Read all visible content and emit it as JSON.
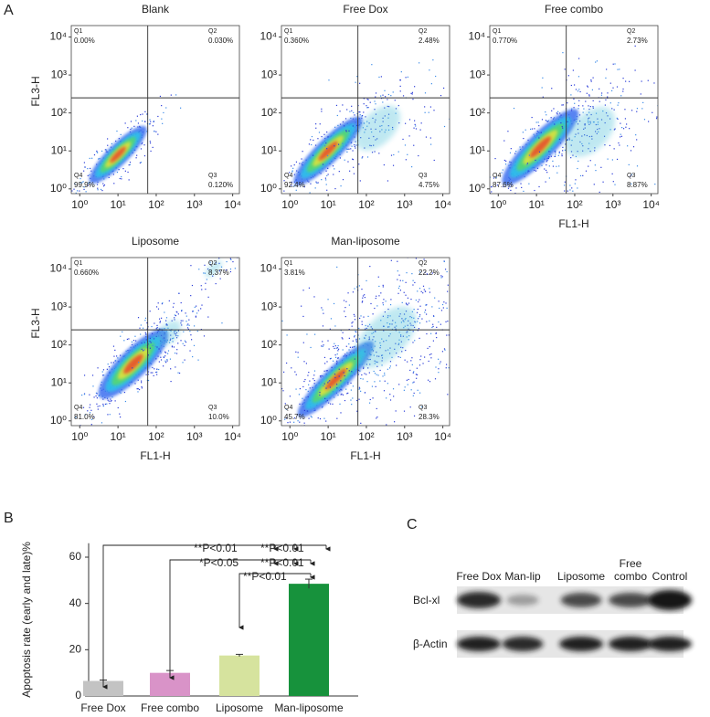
{
  "panel_labels": [
    "A",
    "B",
    "C"
  ],
  "chart_data": [
    {
      "type": "flow",
      "title": "Blank",
      "ylabel": "FL3-H",
      "xscale": "log",
      "yscale": "log",
      "xlim": [
        0.6,
        15000
      ],
      "ylim": [
        0.75,
        20000
      ],
      "x_gate": 60,
      "y_gate": 250,
      "xticks": [
        {
          "value": 1,
          "label": "10⁰"
        },
        {
          "value": 10,
          "label": "10¹"
        },
        {
          "value": 100,
          "label": "10²"
        },
        {
          "value": 1000,
          "label": "10³"
        },
        {
          "value": 10000,
          "label": "10⁴"
        }
      ],
      "yticks": [
        {
          "value": 1,
          "label": "10⁰"
        },
        {
          "value": 10,
          "label": "10¹"
        },
        {
          "value": 100,
          "label": "10²"
        },
        {
          "value": 1000,
          "label": "10³"
        },
        {
          "value": 10000,
          "label": "10⁴"
        }
      ],
      "quadrants": [
        {
          "name": "Q1",
          "label": "0.00%"
        },
        {
          "name": "Q2",
          "label": "0.030%"
        },
        {
          "name": "Q4",
          "label": "99.9%"
        },
        {
          "name": "Q3",
          "label": "0.120%"
        }
      ]
    },
    {
      "type": "flow",
      "title": "Free Dox",
      "xscale": "log",
      "yscale": "log",
      "xlim": [
        0.6,
        15000
      ],
      "ylim": [
        0.75,
        20000
      ],
      "x_gate": 60,
      "y_gate": 250,
      "xticks": [
        {
          "value": 1,
          "label": "10⁰"
        },
        {
          "value": 10,
          "label": "10¹"
        },
        {
          "value": 100,
          "label": "10²"
        },
        {
          "value": 1000,
          "label": "10³"
        },
        {
          "value": 10000,
          "label": "10⁴"
        }
      ],
      "yticks": [
        {
          "value": 1,
          "label": "10⁰"
        },
        {
          "value": 10,
          "label": "10¹"
        },
        {
          "value": 100,
          "label": "10²"
        },
        {
          "value": 1000,
          "label": "10³"
        },
        {
          "value": 10000,
          "label": "10⁴"
        }
      ],
      "quadrants": [
        {
          "name": "Q1",
          "label": "0.360%"
        },
        {
          "name": "Q2",
          "label": "2.48%"
        },
        {
          "name": "Q4",
          "label": "92.4%"
        },
        {
          "name": "Q3",
          "label": "4.75%"
        }
      ]
    },
    {
      "type": "flow",
      "title": "Free combo",
      "xlabel": "FL1-H",
      "xscale": "log",
      "yscale": "log",
      "xlim": [
        0.6,
        15000
      ],
      "ylim": [
        0.75,
        20000
      ],
      "x_gate": 60,
      "y_gate": 250,
      "xticks": [
        {
          "value": 1,
          "label": "10⁰"
        },
        {
          "value": 10,
          "label": "10¹"
        },
        {
          "value": 100,
          "label": "10²"
        },
        {
          "value": 1000,
          "label": "10³"
        },
        {
          "value": 10000,
          "label": "10⁴"
        }
      ],
      "yticks": [
        {
          "value": 1,
          "label": "10⁰"
        },
        {
          "value": 10,
          "label": "10¹"
        },
        {
          "value": 100,
          "label": "10²"
        },
        {
          "value": 1000,
          "label": "10³"
        },
        {
          "value": 10000,
          "label": "10⁴"
        }
      ],
      "quadrants": [
        {
          "name": "Q1",
          "label": "0.770%"
        },
        {
          "name": "Q2",
          "label": "2.73%"
        },
        {
          "name": "Q4",
          "label": "87.6%"
        },
        {
          "name": "Q3",
          "label": "8.87%"
        }
      ]
    },
    {
      "type": "flow",
      "title": "Liposome",
      "xlabel": "FL1-H",
      "ylabel": "FL3-H",
      "xscale": "log",
      "yscale": "log",
      "xlim": [
        0.6,
        15000
      ],
      "ylim": [
        0.75,
        20000
      ],
      "x_gate": 60,
      "y_gate": 250,
      "xticks": [
        {
          "value": 1,
          "label": "10⁰"
        },
        {
          "value": 10,
          "label": "10¹"
        },
        {
          "value": 100,
          "label": "10²"
        },
        {
          "value": 1000,
          "label": "10³"
        },
        {
          "value": 10000,
          "label": "10⁴"
        }
      ],
      "yticks": [
        {
          "value": 1,
          "label": "10⁰"
        },
        {
          "value": 10,
          "label": "10¹"
        },
        {
          "value": 100,
          "label": "10²"
        },
        {
          "value": 1000,
          "label": "10³"
        },
        {
          "value": 10000,
          "label": "10⁴"
        }
      ],
      "quadrants": [
        {
          "name": "Q1",
          "label": "0.660%"
        },
        {
          "name": "Q2",
          "label": "8.37%"
        },
        {
          "name": "Q4",
          "label": "81.0%"
        },
        {
          "name": "Q3",
          "label": "10.0%"
        }
      ]
    },
    {
      "type": "flow",
      "title": "Man-liposome",
      "xlabel": "FL1-H",
      "xscale": "log",
      "yscale": "log",
      "xlim": [
        0.6,
        15000
      ],
      "ylim": [
        0.75,
        20000
      ],
      "x_gate": 60,
      "y_gate": 250,
      "xticks": [
        {
          "value": 1,
          "label": "10⁰"
        },
        {
          "value": 10,
          "label": "10¹"
        },
        {
          "value": 100,
          "label": "10²"
        },
        {
          "value": 1000,
          "label": "10³"
        },
        {
          "value": 10000,
          "label": "10⁴"
        }
      ],
      "yticks": [
        {
          "value": 1,
          "label": "10⁰"
        },
        {
          "value": 10,
          "label": "10¹"
        },
        {
          "value": 100,
          "label": "10²"
        },
        {
          "value": 1000,
          "label": "10³"
        },
        {
          "value": 10000,
          "label": "10⁴"
        }
      ],
      "quadrants": [
        {
          "name": "Q1",
          "label": "3.81%"
        },
        {
          "name": "Q2",
          "label": "22.2%"
        },
        {
          "name": "Q4",
          "label": "45.7%"
        },
        {
          "name": "Q3",
          "label": "28.3%"
        }
      ]
    },
    {
      "type": "bar",
      "ylabel": "Apoptosis rate (early and late)%",
      "categories": [
        "Free Dox",
        "Free combo",
        "Liposome",
        "Man-liposome"
      ],
      "values": [
        6.5,
        10,
        17.5,
        48.5
      ],
      "errors": [
        0.4,
        1,
        0.5,
        2
      ],
      "colors": [
        "#c3c3c3",
        "#d993c8",
        "#d6e39e",
        "#17923c"
      ],
      "ylim": [
        0,
        66
      ],
      "yticks": [
        0,
        20,
        40,
        60
      ],
      "annotations": [
        "**P<0.01",
        "**P<0.01",
        "*P<0.05",
        "**P<0.01",
        "**P<0.01"
      ]
    }
  ],
  "blot": {
    "lanes": [
      "Free Dox",
      "Man-lip",
      "Liposome",
      "Free combo",
      "Control"
    ],
    "rows": [
      "Bcl-xl",
      "β-Actin"
    ]
  }
}
